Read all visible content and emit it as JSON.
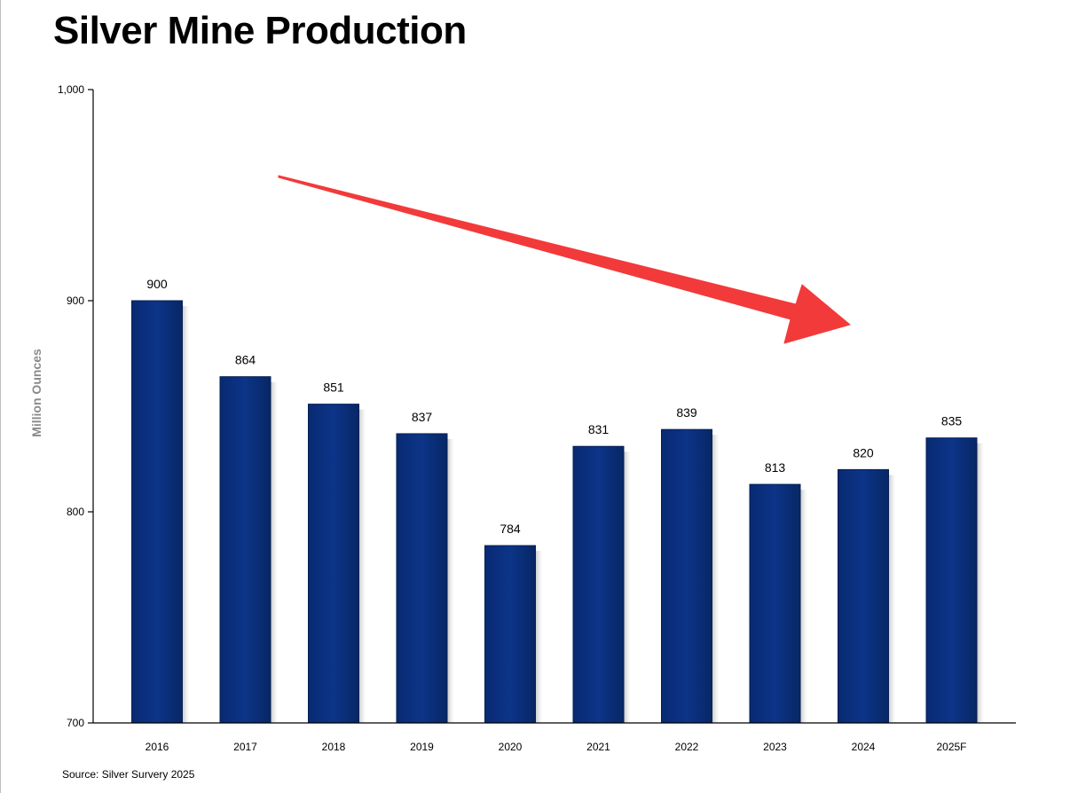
{
  "chart_data": {
    "type": "bar",
    "title": "Silver Mine Production",
    "source": "Source: Silver Survery 2025",
    "xlabel": "",
    "ylabel": "Million Ounces",
    "categories": [
      "2016",
      "2017",
      "2018",
      "2019",
      "2020",
      "2021",
      "2022",
      "2023",
      "2024",
      "2025F"
    ],
    "values": [
      900,
      864,
      851,
      837,
      784,
      831,
      839,
      813,
      820,
      835
    ],
    "ylim": [
      700,
      1000
    ],
    "yticks": [
      700,
      800,
      900,
      1000
    ],
    "ytick_labels": [
      "700",
      "800",
      "900",
      "1,000"
    ],
    "grid": false,
    "bar_color": "#0a2f7d",
    "annotation": {
      "type": "arrow",
      "color": "#f23a3a",
      "from_category": "2017",
      "to_category": "2024",
      "meaning": "downward trend"
    }
  }
}
